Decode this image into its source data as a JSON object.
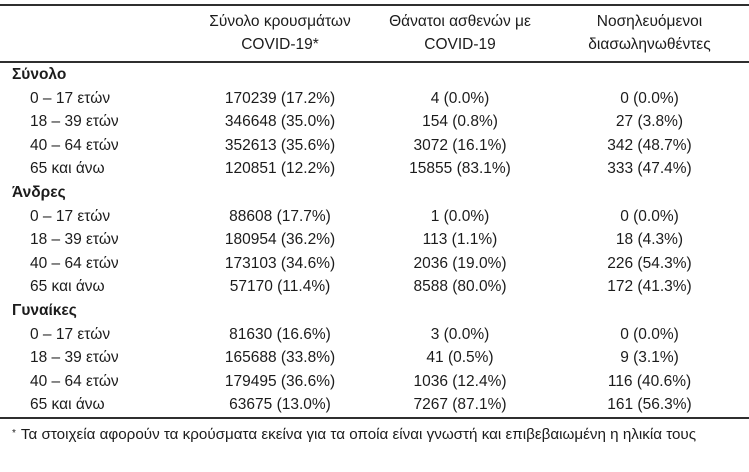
{
  "chart_data": {
    "type": "table",
    "columns": [
      "",
      "Σύνολο κρουσμάτων COVID-19*",
      "Θάνατοι ασθενών με COVID-19",
      "Νοσηλευόμενοι διασωληνωθέντες"
    ],
    "header": [
      {
        "line1": "Σύνολο κρουσμάτων",
        "line2": "COVID-19*"
      },
      {
        "line1": "Θάνατοι ασθενών με",
        "line2": "COVID-19"
      },
      {
        "line1": "Νοσηλευόμενοι",
        "line2": "διασωληνωθέντες"
      }
    ],
    "sections": [
      {
        "title": "Σύνολο",
        "rows": [
          {
            "label": "0 – 17 ετών",
            "cases": "170239 (17.2%)",
            "deaths": "4 (0.0%)",
            "intubated": "0 (0.0%)"
          },
          {
            "label": "18 – 39 ετών",
            "cases": "346648 (35.0%)",
            "deaths": "154 (0.8%)",
            "intubated": "27 (3.8%)"
          },
          {
            "label": "40 – 64 ετών",
            "cases": "352613 (35.6%)",
            "deaths": "3072 (16.1%)",
            "intubated": "342 (48.7%)"
          },
          {
            "label": "65 και άνω",
            "cases": "120851 (12.2%)",
            "deaths": "15855 (83.1%)",
            "intubated": "333 (47.4%)"
          }
        ]
      },
      {
        "title": "Άνδρες",
        "rows": [
          {
            "label": "0 – 17 ετών",
            "cases": "88608 (17.7%)",
            "deaths": "1 (0.0%)",
            "intubated": "0 (0.0%)"
          },
          {
            "label": "18 – 39 ετών",
            "cases": "180954 (36.2%)",
            "deaths": "113 (1.1%)",
            "intubated": "18 (4.3%)"
          },
          {
            "label": "40 – 64 ετών",
            "cases": "173103 (34.6%)",
            "deaths": "2036 (19.0%)",
            "intubated": "226 (54.3%)"
          },
          {
            "label": "65 και άνω",
            "cases": "57170 (11.4%)",
            "deaths": "8588 (80.0%)",
            "intubated": "172 (41.3%)"
          }
        ]
      },
      {
        "title": "Γυναίκες",
        "rows": [
          {
            "label": "0 – 17 ετών",
            "cases": "81630 (16.6%)",
            "deaths": "3 (0.0%)",
            "intubated": "0 (0.0%)"
          },
          {
            "label": "18 – 39 ετών",
            "cases": "165688 (33.8%)",
            "deaths": "41 (0.5%)",
            "intubated": "9 (3.1%)"
          },
          {
            "label": "40 – 64 ετών",
            "cases": "179495 (36.6%)",
            "deaths": "1036 (12.4%)",
            "intubated": "116 (40.6%)"
          },
          {
            "label": "65 και άνω",
            "cases": "63675 (13.0%)",
            "deaths": "7267 (87.1%)",
            "intubated": "161 (56.3%)"
          }
        ]
      }
    ],
    "footnote": {
      "marker": "*",
      "text": "Τα στοιχεία αφορούν τα κρούσματα εκείνα για τα οποία είναι γνωστή και επιβεβαιωμένη η ηλικία τους"
    },
    "colors": {
      "text": "#1c1c1c",
      "rule": "#2f2f2f",
      "background": "#ffffff"
    }
  }
}
